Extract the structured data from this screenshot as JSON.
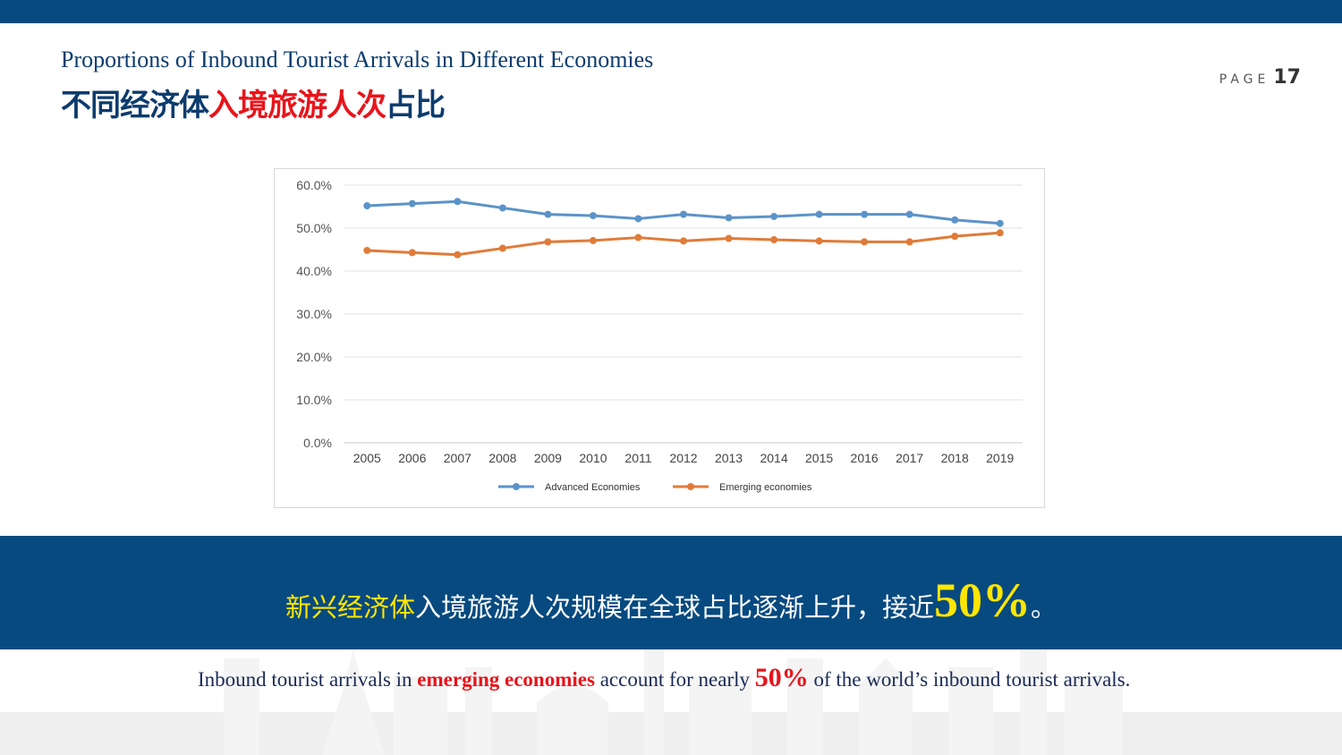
{
  "header": {
    "title_en": "Proportions of Inbound Tourist Arrivals in Different Economies",
    "title_zh_part1": "不同经济体",
    "title_zh_part2": "入境旅游人次",
    "title_zh_part3": "占比",
    "page_label": "PAGE",
    "page_number": "17"
  },
  "colors": {
    "brand_blue": "#074a80",
    "highlight_red": "#e8141b",
    "highlight_yellow": "#ffe600",
    "advanced_series": "#5b93c8",
    "emerging_series": "#e07b39"
  },
  "chart_data": {
    "type": "line",
    "title": "",
    "xlabel": "",
    "ylabel": "",
    "x": [
      "2005",
      "2006",
      "2007",
      "2008",
      "2009",
      "2010",
      "2011",
      "2012",
      "2013",
      "2014",
      "2015",
      "2016",
      "2017",
      "2018",
      "2019"
    ],
    "y_ticks": [
      "0.0%",
      "10.0%",
      "20.0%",
      "30.0%",
      "40.0%",
      "50.0%",
      "60.0%"
    ],
    "ylim": [
      0,
      60
    ],
    "grid": true,
    "legend_position": "bottom",
    "series": [
      {
        "name": "Advanced Economies",
        "color": "#5b93c8",
        "values": [
          55.2,
          55.7,
          56.2,
          54.7,
          53.2,
          52.9,
          52.2,
          53.2,
          52.4,
          52.7,
          53.2,
          53.2,
          53.2,
          51.9,
          51.1
        ]
      },
      {
        "name": "Emerging economies",
        "color": "#e07b39",
        "values": [
          44.8,
          44.3,
          43.8,
          45.3,
          46.8,
          47.1,
          47.8,
          47.0,
          47.6,
          47.3,
          47.0,
          46.8,
          46.8,
          48.1,
          48.9
        ]
      }
    ]
  },
  "banner": {
    "part_yellow": "新兴经济体",
    "part_white": "入境旅游人次规模在全球占比逐渐上升，接近",
    "big_number": "50%",
    "ending": "。"
  },
  "footnote": {
    "text1": "Inbound tourist arrivals in ",
    "highlight1": "emerging economies",
    "text2": " account for nearly ",
    "highlight2": "50%",
    "text3": " of the world’s inbound tourist arrivals."
  }
}
